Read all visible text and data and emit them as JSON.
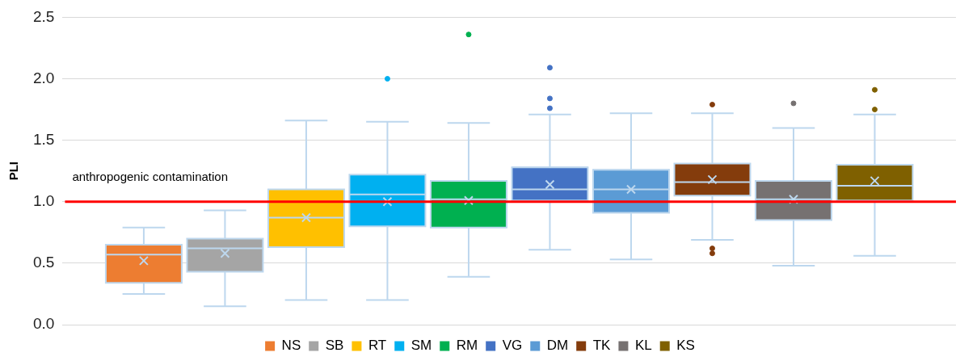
{
  "chart_data": {
    "type": "box",
    "ylabel": "PLI",
    "categories": [
      null
    ],
    "ylim": [
      0,
      2.5
    ],
    "yticks": [
      {
        "value": 0,
        "label": "0.0"
      },
      {
        "value": 0.5,
        "label": "0.5"
      },
      {
        "value": 1,
        "label": "1.0"
      },
      {
        "value": 1.5,
        "label": "1.5"
      },
      {
        "value": 2,
        "label": "2.0"
      },
      {
        "value": 2.5,
        "label": "2.5"
      }
    ],
    "grid": "y",
    "legend": "bottom",
    "ref_lines": [
      {
        "axis": "y",
        "value": 1.0,
        "label": "anthropogenic contamination",
        "color": "#ff0000"
      }
    ],
    "series": [
      {
        "name": "NS",
        "color": "#ed7d31",
        "boxes": [
          {
            "low": 0.25,
            "q1": 0.34,
            "median": 0.57,
            "q3": 0.65,
            "high": 0.79,
            "mean": 0.52
          }
        ]
      },
      {
        "name": "SB",
        "color": "#a5a5a5",
        "boxes": [
          {
            "low": 0.15,
            "q1": 0.43,
            "median": 0.62,
            "q3": 0.7,
            "high": 0.93,
            "mean": 0.58
          }
        ]
      },
      {
        "name": "RT",
        "color": "#ffc000",
        "boxes": [
          {
            "low": 0.2,
            "q1": 0.63,
            "median": 0.87,
            "q3": 1.1,
            "high": 1.66,
            "mean": 0.87
          }
        ]
      },
      {
        "name": "SM",
        "color": "#00b0f0",
        "boxes": [
          {
            "low": 0.2,
            "q1": 0.8,
            "median": 1.06,
            "q3": 1.22,
            "high": 1.65,
            "mean": 1.0,
            "outliers": [
              2.0
            ]
          }
        ]
      },
      {
        "name": "RM",
        "color": "#00b050",
        "boxes": [
          {
            "low": 0.39,
            "q1": 0.79,
            "median": 1.02,
            "q3": 1.17,
            "high": 1.64,
            "mean": 1.01,
            "outliers": [
              2.36
            ]
          }
        ]
      },
      {
        "name": "VG",
        "color": "#4472c4",
        "boxes": [
          {
            "low": 0.61,
            "q1": 1.01,
            "median": 1.1,
            "q3": 1.28,
            "high": 1.71,
            "mean": 1.14,
            "outliers": [
              2.09,
              1.84,
              1.76
            ]
          }
        ]
      },
      {
        "name": "DM",
        "color": "#5b9bd5",
        "boxes": [
          {
            "low": 0.53,
            "q1": 0.91,
            "median": 1.1,
            "q3": 1.26,
            "high": 1.72,
            "mean": 1.1
          }
        ]
      },
      {
        "name": "TK",
        "color": "#843c0c",
        "boxes": [
          {
            "low": 0.69,
            "q1": 1.05,
            "median": 1.16,
            "q3": 1.31,
            "high": 1.72,
            "mean": 1.18,
            "outliers": [
              1.79,
              0.62,
              0.58
            ]
          }
        ]
      },
      {
        "name": "KL",
        "color": "#767171",
        "boxes": [
          {
            "low": 0.48,
            "q1": 0.85,
            "median": 1.02,
            "q3": 1.17,
            "high": 1.6,
            "mean": 1.02,
            "outliers": [
              1.8
            ]
          }
        ]
      },
      {
        "name": "KS",
        "color": "#7f6000",
        "boxes": [
          {
            "low": 0.56,
            "q1": 1.01,
            "median": 1.13,
            "q3": 1.3,
            "high": 1.71,
            "mean": 1.17,
            "outliers": [
              1.91,
              1.75
            ]
          }
        ]
      }
    ]
  }
}
